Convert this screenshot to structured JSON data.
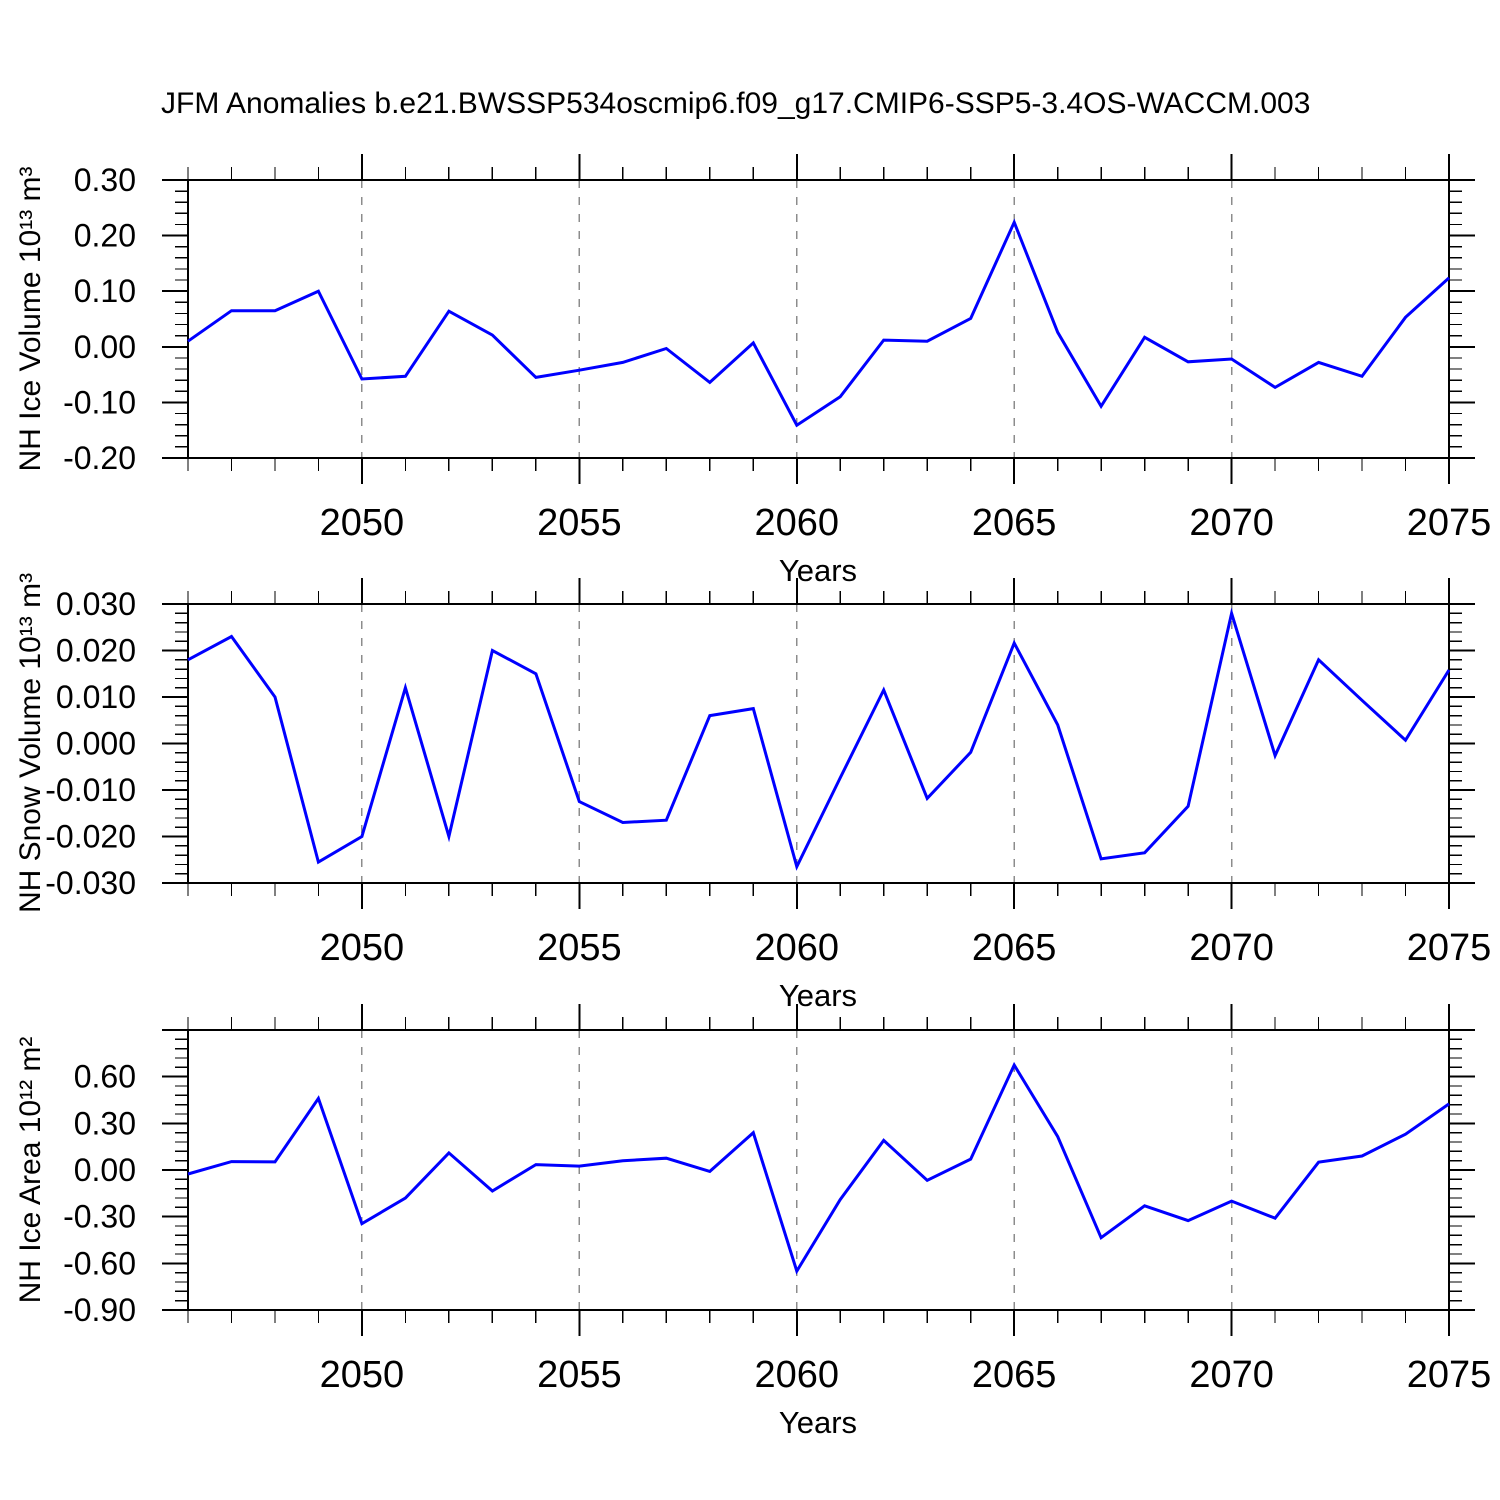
{
  "title": "JFM Anomalies b.e21.BWSSP534oscmip6.f09_g17.CMIP6-SSP5-3.4OS-WACCM.003",
  "colors": {
    "line": "#0000ff",
    "grid": "#8c8c8c",
    "frame": "#000000",
    "background": "#ffffff"
  },
  "chart_data": [
    {
      "type": "line",
      "ylabel": "NH Ice Volume 10¹³ m³",
      "xlabel": "Years",
      "xlim": [
        2046,
        2075
      ],
      "ylim": [
        -0.2,
        0.3
      ],
      "x": [
        2046,
        2047,
        2048,
        2049,
        2050,
        2051,
        2052,
        2053,
        2054,
        2055,
        2056,
        2057,
        2058,
        2059,
        2060,
        2061,
        2062,
        2063,
        2064,
        2065,
        2066,
        2067,
        2068,
        2069,
        2070,
        2071,
        2072,
        2073,
        2074,
        2075
      ],
      "values": [
        0.01,
        0.065,
        0.065,
        0.1,
        -0.058,
        -0.053,
        0.064,
        0.021,
        -0.055,
        -0.042,
        -0.028,
        -0.003,
        -0.064,
        0.007,
        -0.141,
        -0.09,
        0.012,
        0.01,
        0.051,
        0.224,
        0.026,
        -0.107,
        0.017,
        -0.027,
        -0.022,
        -0.073,
        -0.028,
        -0.053,
        0.053,
        0.124
      ],
      "xticks": [
        2050,
        2055,
        2060,
        2065,
        2070,
        2075
      ],
      "xtick_labels": [
        "2050",
        "2055",
        "2060",
        "2065",
        "2070",
        "2075"
      ],
      "yticks": [
        {
          "v": 0.3,
          "label": "0.30"
        },
        {
          "v": 0.2,
          "label": "0.20"
        },
        {
          "v": 0.1,
          "label": "0.10"
        },
        {
          "v": 0.0,
          "label": "0.00"
        },
        {
          "v": -0.1,
          "label": "-0.10"
        },
        {
          "v": -0.2,
          "label": "-0.20"
        }
      ],
      "y_minor_step": 0.02,
      "grid_x": [
        2050,
        2055,
        2060,
        2065,
        2070
      ]
    },
    {
      "type": "line",
      "ylabel": "NH Snow Volume 10¹³ m³",
      "xlabel": "Years",
      "xlim": [
        2046,
        2075
      ],
      "ylim": [
        -0.03,
        0.03
      ],
      "x": [
        2046,
        2047,
        2048,
        2049,
        2050,
        2051,
        2052,
        2053,
        2054,
        2055,
        2056,
        2057,
        2058,
        2059,
        2060,
        2061,
        2062,
        2063,
        2064,
        2065,
        2066,
        2067,
        2068,
        2069,
        2070,
        2071,
        2072,
        2073,
        2074,
        2075
      ],
      "values": [
        0.018,
        0.023,
        0.01,
        -0.0255,
        -0.02,
        0.012,
        -0.02,
        0.02,
        0.015,
        -0.0125,
        -0.017,
        -0.0165,
        0.006,
        0.0075,
        -0.0265,
        -0.0074,
        0.0115,
        -0.0118,
        -0.0019,
        0.0216,
        0.004,
        -0.0248,
        -0.0235,
        -0.0135,
        0.028,
        -0.0026,
        0.018,
        0.0093,
        0.0007,
        0.0158
      ],
      "xticks": [
        2050,
        2055,
        2060,
        2065,
        2070,
        2075
      ],
      "xtick_labels": [
        "2050",
        "2055",
        "2060",
        "2065",
        "2070",
        "2075"
      ],
      "yticks": [
        {
          "v": 0.03,
          "label": "0.030"
        },
        {
          "v": 0.02,
          "label": "0.020"
        },
        {
          "v": 0.01,
          "label": "0.010"
        },
        {
          "v": 0.0,
          "label": "0.000"
        },
        {
          "v": -0.01,
          "label": "-0.010"
        },
        {
          "v": -0.02,
          "label": "-0.020"
        },
        {
          "v": -0.03,
          "label": "-0.030"
        }
      ],
      "y_minor_step": 0.002,
      "grid_x": [
        2050,
        2055,
        2060,
        2065,
        2070
      ]
    },
    {
      "type": "line",
      "ylabel": "NH Ice Area 10¹² m²",
      "xlabel": "Years",
      "xlim": [
        2046,
        2075
      ],
      "ylim": [
        -0.9,
        0.9
      ],
      "x": [
        2046,
        2047,
        2048,
        2049,
        2050,
        2051,
        2052,
        2053,
        2054,
        2055,
        2056,
        2057,
        2058,
        2059,
        2060,
        2061,
        2062,
        2063,
        2064,
        2065,
        2066,
        2067,
        2068,
        2069,
        2070,
        2071,
        2072,
        2073,
        2074,
        2075
      ],
      "values": [
        -0.026,
        0.054,
        0.052,
        0.46,
        -0.345,
        -0.18,
        0.11,
        -0.135,
        0.035,
        0.025,
        0.06,
        0.076,
        -0.009,
        0.24,
        -0.65,
        -0.19,
        0.19,
        -0.066,
        0.07,
        0.675,
        0.215,
        -0.435,
        -0.23,
        -0.325,
        -0.2,
        -0.31,
        0.05,
        0.09,
        0.23,
        0.425
      ],
      "xticks": [
        2050,
        2055,
        2060,
        2065,
        2070,
        2075
      ],
      "xtick_labels": [
        "2050",
        "2055",
        "2060",
        "2065",
        "2070",
        "2075"
      ],
      "yticks": [
        {
          "v": 0.9,
          "label": ""
        },
        {
          "v": 0.6,
          "label": "0.60"
        },
        {
          "v": 0.3,
          "label": "0.30"
        },
        {
          "v": 0.0,
          "label": "0.00"
        },
        {
          "v": -0.3,
          "label": "-0.30"
        },
        {
          "v": -0.6,
          "label": "-0.60"
        },
        {
          "v": -0.9,
          "label": "-0.90"
        }
      ],
      "y_minor_step": 0.06,
      "grid_x": [
        2050,
        2055,
        2060,
        2065,
        2070
      ]
    }
  ]
}
